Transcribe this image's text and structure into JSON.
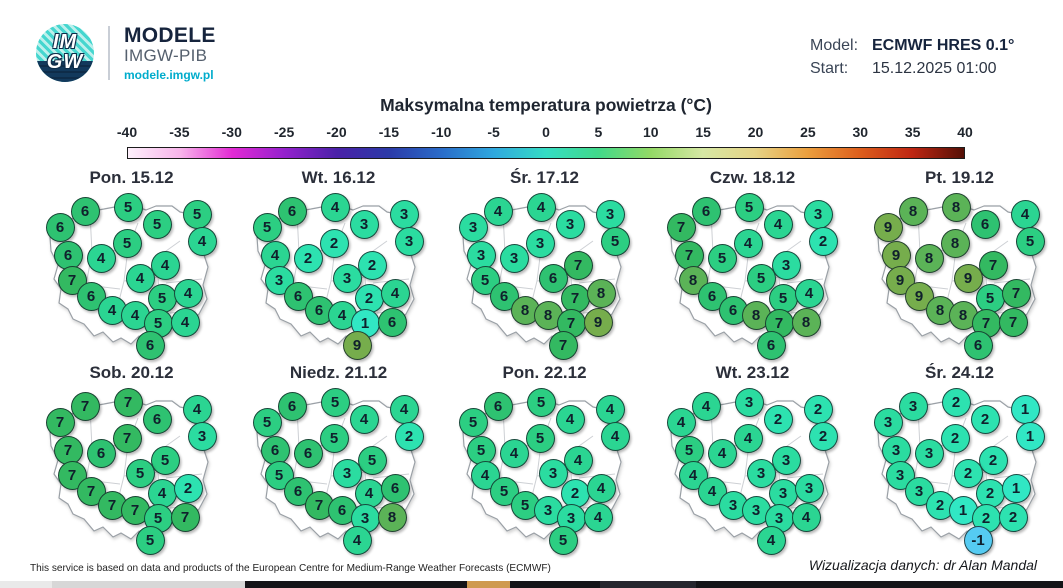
{
  "header": {
    "logo": {
      "monogram_top": "IM",
      "monogram_bottom": "GW",
      "title": "MODELE",
      "subtitle": "IMGW-PIB",
      "url": "modele.imgw.pl"
    },
    "model": {
      "label": "Model:",
      "value": "ECMWF HRES 0.1°"
    },
    "start": {
      "label": "Start:",
      "value": "15.12.2025 01:00"
    }
  },
  "scale": {
    "title": "Maksymalna temperatura powietrza (°C)",
    "unit": "°C",
    "min": -40,
    "max": 40,
    "ticks": [
      "-40",
      "-35",
      "-30",
      "-25",
      "-20",
      "-15",
      "-10",
      "-5",
      "0",
      "5",
      "10",
      "15",
      "20",
      "25",
      "30",
      "35",
      "40"
    ],
    "gradient": [
      {
        "pos": 0.0,
        "color": "#fdf0fb"
      },
      {
        "pos": 6.25,
        "color": "#f8b4ea"
      },
      {
        "pos": 12.5,
        "color": "#e22ad4"
      },
      {
        "pos": 18.75,
        "color": "#9421cd"
      },
      {
        "pos": 25.0,
        "color": "#4a21a8"
      },
      {
        "pos": 31.25,
        "color": "#2b3aa8"
      },
      {
        "pos": 37.5,
        "color": "#2a6cc9"
      },
      {
        "pos": 43.75,
        "color": "#2fa8df"
      },
      {
        "pos": 50.0,
        "color": "#35ddc4"
      },
      {
        "pos": 56.25,
        "color": "#41d98a"
      },
      {
        "pos": 62.5,
        "color": "#93d966"
      },
      {
        "pos": 68.75,
        "color": "#d6e8a4"
      },
      {
        "pos": 75.0,
        "color": "#e6d386"
      },
      {
        "pos": 81.25,
        "color": "#eb9f3e"
      },
      {
        "pos": 87.5,
        "color": "#dd5f1d"
      },
      {
        "pos": 93.75,
        "color": "#bf2612"
      },
      {
        "pos": 100.0,
        "color": "#551007"
      }
    ]
  },
  "stations": [
    [
      65,
      18
    ],
    [
      108,
      14
    ],
    [
      177,
      21
    ],
    [
      40,
      34
    ],
    [
      137,
      31
    ],
    [
      182,
      48
    ],
    [
      107,
      50
    ],
    [
      48,
      62
    ],
    [
      81,
      65
    ],
    [
      145,
      72
    ],
    [
      52,
      87
    ],
    [
      120,
      85
    ],
    [
      71,
      103
    ],
    [
      142,
      105
    ],
    [
      168,
      100
    ],
    [
      92,
      117
    ],
    [
      115,
      122
    ],
    [
      138,
      130
    ],
    [
      165,
      129
    ],
    [
      130,
      152
    ]
  ],
  "value_colors": {
    "-1": "#55cbf2",
    "1": "#31e7c4",
    "2": "#2de2b0",
    "3": "#2bdca0",
    "4": "#2bd592",
    "5": "#2cce82",
    "6": "#2ec271",
    "7": "#33b961",
    "8": "#5bb357",
    "9": "#76ad4c"
  },
  "maps": [
    {
      "title": "Pon. 15.12",
      "values": [
        6,
        5,
        5,
        6,
        5,
        4,
        5,
        6,
        4,
        4,
        7,
        4,
        6,
        5,
        4,
        4,
        4,
        5,
        4,
        6
      ]
    },
    {
      "title": "Wt. 16.12",
      "values": [
        6,
        4,
        3,
        5,
        3,
        3,
        2,
        4,
        2,
        2,
        3,
        3,
        6,
        2,
        4,
        6,
        4,
        1,
        6,
        9
      ]
    },
    {
      "title": "Śr. 17.12",
      "values": [
        4,
        4,
        3,
        3,
        3,
        5,
        3,
        3,
        3,
        7,
        5,
        6,
        6,
        7,
        8,
        8,
        8,
        7,
        9,
        7
      ]
    },
    {
      "title": "Czw. 18.12",
      "values": [
        6,
        5,
        3,
        7,
        4,
        2,
        4,
        7,
        5,
        3,
        8,
        5,
        6,
        5,
        4,
        6,
        8,
        7,
        8,
        6
      ]
    },
    {
      "title": "Pt. 19.12",
      "values": [
        8,
        8,
        4,
        9,
        6,
        5,
        8,
        9,
        8,
        7,
        9,
        9,
        9,
        5,
        7,
        8,
        8,
        7,
        7,
        6
      ]
    },
    {
      "title": "Sob. 20.12",
      "values": [
        7,
        7,
        4,
        7,
        6,
        3,
        7,
        7,
        6,
        5,
        7,
        5,
        7,
        4,
        2,
        7,
        7,
        5,
        7,
        5
      ]
    },
    {
      "title": "Niedz. 21.12",
      "values": [
        6,
        5,
        4,
        5,
        4,
        2,
        5,
        6,
        6,
        5,
        5,
        3,
        6,
        4,
        6,
        7,
        6,
        3,
        8,
        4
      ]
    },
    {
      "title": "Pon. 22.12",
      "values": [
        6,
        5,
        4,
        5,
        4,
        4,
        5,
        5,
        4,
        4,
        4,
        3,
        5,
        2,
        4,
        5,
        3,
        3,
        4,
        5
      ]
    },
    {
      "title": "Wt. 23.12",
      "values": [
        4,
        3,
        2,
        4,
        2,
        2,
        4,
        5,
        4,
        3,
        4,
        3,
        4,
        3,
        3,
        3,
        3,
        3,
        4,
        4
      ]
    },
    {
      "title": "Śr. 24.12",
      "values": [
        3,
        2,
        1,
        3,
        2,
        1,
        2,
        3,
        3,
        2,
        3,
        2,
        3,
        2,
        1,
        2,
        1,
        2,
        2,
        -1
      ]
    }
  ],
  "footer": {
    "left": "This service is based on data and products of the European Centre for Medium-Range Weather Forecasts (ECMWF)",
    "right": "Wizualizacja danych: dr Alan Mandal"
  }
}
